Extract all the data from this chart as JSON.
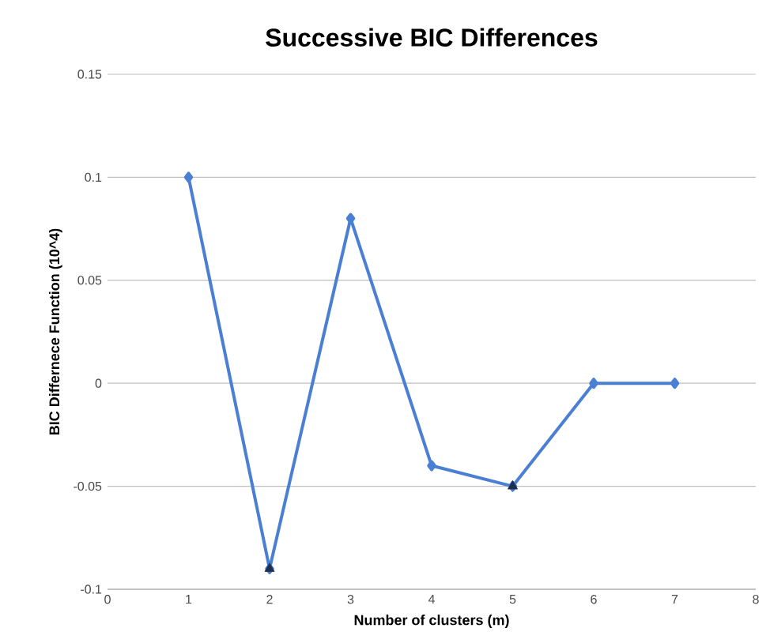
{
  "chart_data": {
    "type": "line",
    "title": "Successive BIC Differences",
    "xlabel": "Number of clusters (m)",
    "ylabel": "BIC  Differnece Function (10^4)",
    "xlim": [
      0,
      8
    ],
    "xticks": [
      0,
      1,
      2,
      3,
      4,
      5,
      6,
      7,
      8
    ],
    "ylim": [
      -0.1,
      0.15
    ],
    "yticks": [
      -0.1,
      -0.05,
      0,
      0.05,
      0.1,
      0.15
    ],
    "grid": "y",
    "marker": "diamond",
    "line_style": "solid",
    "series": [
      {
        "color": "#4a7fd4",
        "x": [
          1,
          2,
          3,
          4,
          5,
          6,
          7
        ],
        "values": [
          0.1,
          -0.09,
          0.08,
          -0.04,
          -0.05,
          0,
          0
        ]
      },
      {
        "type": "scatter",
        "marker": "triangle",
        "color": "#1f2f4f",
        "x": [
          2,
          5
        ],
        "values": [
          -0.09,
          -0.05
        ]
      }
    ]
  }
}
